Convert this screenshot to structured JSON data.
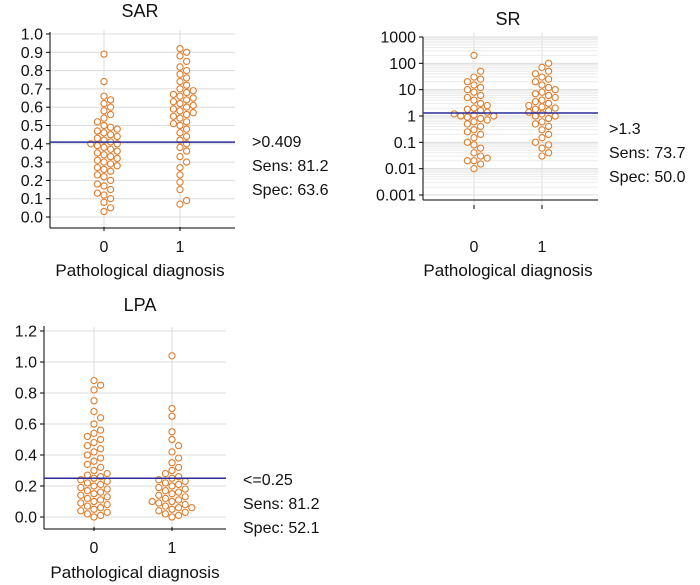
{
  "chart_data": [
    {
      "id": "sar",
      "type": "scatter",
      "title": "SAR",
      "scale": "linear",
      "xlabel": "Pathological diagnosis",
      "ylabel": "",
      "categories": [
        "0",
        "1"
      ],
      "ylim": [
        0,
        1
      ],
      "yticks": [
        "0.0",
        "0.1",
        "0.2",
        "0.3",
        "0.4",
        "0.5",
        "0.6",
        "0.7",
        "0.8",
        "0.9",
        "1.0"
      ],
      "cutoff": 0.409,
      "annotation": [
        ">0.409",
        "Sens: 81.2",
        "Spec: 63.6"
      ],
      "series": [
        {
          "name": "0",
          "values": [
            0.03,
            0.05,
            0.08,
            0.1,
            0.12,
            0.13,
            0.15,
            0.17,
            0.18,
            0.2,
            0.22,
            0.23,
            0.25,
            0.26,
            0.27,
            0.28,
            0.29,
            0.3,
            0.31,
            0.32,
            0.33,
            0.34,
            0.35,
            0.36,
            0.37,
            0.38,
            0.39,
            0.4,
            0.4,
            0.41,
            0.42,
            0.43,
            0.44,
            0.45,
            0.46,
            0.47,
            0.48,
            0.49,
            0.5,
            0.52,
            0.54,
            0.56,
            0.58,
            0.6,
            0.62,
            0.64,
            0.66,
            0.74,
            0.89
          ]
        },
        {
          "name": "1",
          "values": [
            0.07,
            0.09,
            0.15,
            0.19,
            0.23,
            0.27,
            0.3,
            0.33,
            0.36,
            0.38,
            0.4,
            0.42,
            0.44,
            0.46,
            0.48,
            0.5,
            0.51,
            0.52,
            0.54,
            0.55,
            0.56,
            0.57,
            0.58,
            0.59,
            0.6,
            0.61,
            0.62,
            0.63,
            0.64,
            0.65,
            0.66,
            0.67,
            0.68,
            0.69,
            0.7,
            0.72,
            0.74,
            0.76,
            0.78,
            0.8,
            0.82,
            0.85,
            0.88,
            0.9,
            0.92
          ]
        }
      ]
    },
    {
      "id": "sr",
      "type": "scatter",
      "title": "SR",
      "scale": "log",
      "xlabel": "Pathological diagnosis",
      "ylabel": "",
      "categories": [
        "0",
        "1"
      ],
      "ylim": [
        0.001,
        1000
      ],
      "yticks": [
        "0.001",
        "0.01",
        "0.1",
        "1",
        "10",
        "100",
        "1000"
      ],
      "cutoff": 1.3,
      "annotation": [
        ">1.3",
        "Sens: 73.7",
        "Spec: 50.0"
      ],
      "series": [
        {
          "name": "0",
          "values": [
            0.01,
            0.015,
            0.02,
            0.02,
            0.025,
            0.03,
            0.04,
            0.06,
            0.08,
            0.1,
            0.15,
            0.2,
            0.25,
            0.3,
            0.4,
            0.5,
            0.6,
            0.7,
            0.8,
            0.9,
            1,
            1,
            1.1,
            1.2,
            1.4,
            1.6,
            1.8,
            2,
            2.5,
            3,
            4,
            5,
            6,
            8,
            10,
            12,
            15,
            20,
            25,
            30,
            50,
            200
          ]
        },
        {
          "name": "1",
          "values": [
            0.03,
            0.04,
            0.06,
            0.08,
            0.1,
            0.15,
            0.2,
            0.3,
            0.4,
            0.5,
            0.6,
            0.8,
            1,
            1,
            1.2,
            1.4,
            1.6,
            1.8,
            2,
            2.2,
            2.5,
            3,
            3.5,
            4,
            5,
            6,
            7,
            8,
            10,
            12,
            15,
            20,
            25,
            30,
            40,
            50,
            70,
            100
          ]
        }
      ]
    },
    {
      "id": "lpa",
      "type": "scatter",
      "title": "LPA",
      "scale": "linear",
      "xlabel": "Pathological diagnosis",
      "ylabel": "",
      "categories": [
        "0",
        "1"
      ],
      "ylim": [
        0,
        1.2
      ],
      "yticks": [
        "0.0",
        "0.2",
        "0.4",
        "0.6",
        "0.8",
        "1.0",
        "1.2"
      ],
      "cutoff": 0.25,
      "annotation": [
        "<=0.25",
        "Sens: 81.2",
        "Spec: 52.1"
      ],
      "series": [
        {
          "name": "0",
          "values": [
            0,
            0.01,
            0.02,
            0.03,
            0.04,
            0.05,
            0.06,
            0.07,
            0.08,
            0.09,
            0.1,
            0.11,
            0.12,
            0.13,
            0.14,
            0.15,
            0.16,
            0.17,
            0.18,
            0.19,
            0.2,
            0.21,
            0.22,
            0.23,
            0.24,
            0.25,
            0.26,
            0.27,
            0.28,
            0.3,
            0.32,
            0.34,
            0.36,
            0.38,
            0.4,
            0.42,
            0.44,
            0.46,
            0.48,
            0.5,
            0.52,
            0.54,
            0.56,
            0.6,
            0.64,
            0.68,
            0.75,
            0.82,
            0.85,
            0.88
          ]
        },
        {
          "name": "1",
          "values": [
            0,
            0.01,
            0.02,
            0.03,
            0.04,
            0.05,
            0.06,
            0.06,
            0.07,
            0.08,
            0.09,
            0.1,
            0.1,
            0.11,
            0.12,
            0.13,
            0.14,
            0.15,
            0.16,
            0.17,
            0.18,
            0.19,
            0.2,
            0.21,
            0.22,
            0.23,
            0.24,
            0.25,
            0.26,
            0.28,
            0.3,
            0.32,
            0.35,
            0.38,
            0.42,
            0.46,
            0.5,
            0.55,
            0.65,
            0.7,
            1.04
          ]
        }
      ]
    }
  ]
}
